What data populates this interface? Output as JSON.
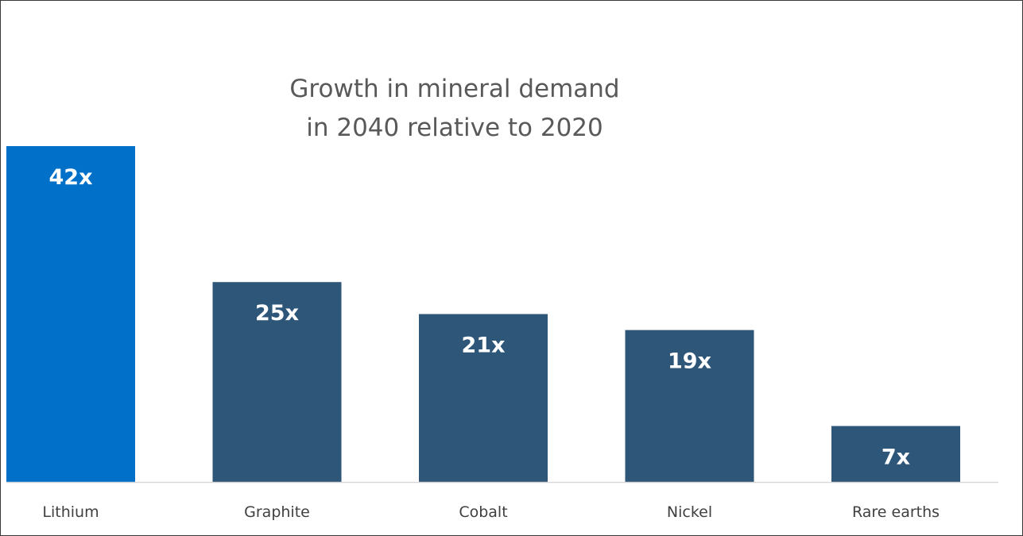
{
  "chart_data": {
    "type": "bar",
    "title": "Growth in mineral demand",
    "subtitle": "in 2040 relative to 2020",
    "categories": [
      "Lithium",
      "Graphite",
      "Cobalt",
      "Nickel",
      "Rare earths"
    ],
    "values": [
      42,
      25,
      21,
      19,
      7
    ],
    "data_labels": [
      "42x",
      "25x",
      "21x",
      "19x",
      "7x"
    ],
    "ylim": [
      0,
      42
    ],
    "grid": false,
    "legend": "none",
    "colors": {
      "highlight": "#0070C9",
      "default": "#2E5679",
      "axis": "#D9D9D9"
    },
    "highlight_index": 0
  }
}
